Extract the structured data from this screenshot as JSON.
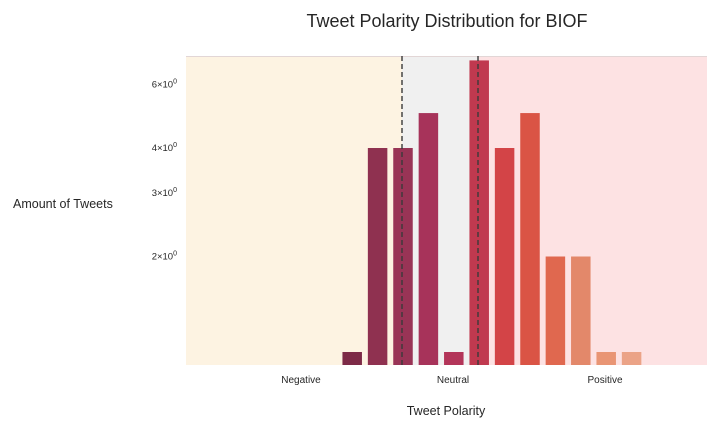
{
  "chart_data": {
    "type": "bar",
    "title": "Tweet Polarity Distribution for BIOF",
    "xlabel": "Tweet Polarity",
    "ylabel": "Amount of Tweets",
    "y_scale": "log",
    "ylim": [
      1,
      7.2
    ],
    "y_ticks": [
      {
        "value": 2,
        "label_mantissa": "2×10",
        "label_exp": "0"
      },
      {
        "value": 3,
        "label_mantissa": "3×10",
        "label_exp": "0"
      },
      {
        "value": 4,
        "label_mantissa": "4×10",
        "label_exp": "0"
      },
      {
        "value": 6,
        "label_mantissa": "6×10",
        "label_exp": "0"
      }
    ],
    "x_tick_labels": [
      "Negative",
      "Neutral",
      "Positive"
    ],
    "regions": [
      {
        "name": "Negative",
        "color": "#fdf3e2"
      },
      {
        "name": "Neutral",
        "color": "#f0f0f0"
      },
      {
        "name": "Positive",
        "color": "#fde2e3"
      }
    ],
    "values": [
      1,
      4,
      4,
      5,
      1,
      7,
      4,
      5,
      2,
      2,
      1,
      1
    ],
    "bar_colors": [
      "#7d2a47",
      "#8f3150",
      "#993456",
      "#a7335a",
      "#b33559",
      "#c0394f",
      "#d34447",
      "#da5445",
      "#e0684f",
      "#e3886a",
      "#e99574",
      "#eba387"
    ],
    "reference_lines": [
      {
        "style": "dashed",
        "color": "#3a3a3a"
      },
      {
        "style": "dashed",
        "color": "#3a3a3a"
      }
    ],
    "grid": false,
    "legend": "none"
  }
}
